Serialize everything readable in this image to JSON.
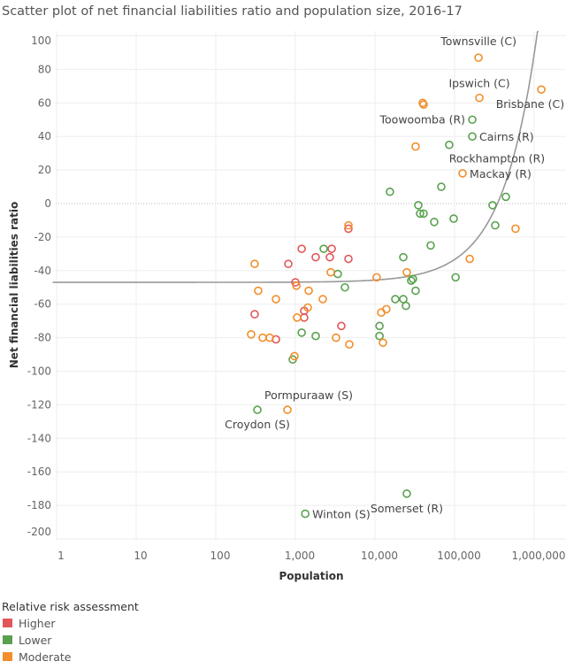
{
  "chart_data": {
    "type": "scatter",
    "title": "Scatter plot of net financial liabilities ratio and population size, 2016-17",
    "xlabel": "Population",
    "ylabel": "Net financial liabilities ratio",
    "xscale": "log",
    "xlim": [
      0.85,
      2000000
    ],
    "ylim": [
      -201,
      103
    ],
    "xticks": [
      1,
      10,
      100,
      1000,
      10000,
      100000,
      1000000
    ],
    "xtick_labels": [
      "1",
      "10",
      "100",
      "1,000",
      "10,000",
      "100,000",
      "1,000,000"
    ],
    "yticks": [
      100,
      80,
      60,
      40,
      20,
      0,
      -20,
      -40,
      -60,
      -80,
      -100,
      -120,
      -140,
      -160,
      -180,
      -200
    ],
    "ytick_labels": [
      "100",
      "80",
      "60",
      "40",
      "20",
      "0",
      "-20",
      "-40",
      "-60",
      "-80",
      "-100",
      "-120",
      "-140",
      "-160",
      "-180",
      "-200"
    ],
    "grid": true,
    "trend_line": {
      "type": "linear",
      "intercept": -47,
      "slope": 0.000136,
      "color": "#999999"
    },
    "legend": {
      "title": "Relative risk assessment",
      "placement": "bottom-left",
      "entries": [
        {
          "name": "Higher",
          "color": "#e15759"
        },
        {
          "name": "Lower",
          "color": "#59a14f"
        },
        {
          "name": "Moderate",
          "color": "#f28e2b"
        }
      ]
    },
    "series": [
      {
        "name": "Higher",
        "color": "#e15759",
        "points": [
          {
            "x": 1200,
            "y": -27
          },
          {
            "x": 1800,
            "y": -32
          },
          {
            "x": 2860,
            "y": -27
          },
          {
            "x": 2710,
            "y": -32
          },
          {
            "x": 4640,
            "y": -15
          },
          {
            "x": 4640,
            "y": -33
          },
          {
            "x": 815,
            "y": -36
          },
          {
            "x": 1000,
            "y": -47
          },
          {
            "x": 308,
            "y": -66
          },
          {
            "x": 1290,
            "y": -64
          },
          {
            "x": 1290,
            "y": -68
          },
          {
            "x": 3780,
            "y": -73
          },
          {
            "x": 570,
            "y": -81
          }
        ]
      },
      {
        "name": "Lower",
        "color": "#59a14f",
        "points": [
          {
            "x": 167000,
            "y": 50,
            "label": "Toowoomba (R)"
          },
          {
            "x": 167000,
            "y": 40,
            "label": "Cairns (R)"
          },
          {
            "x": 85700,
            "y": 35,
            "label": "Rockhampton (R)"
          },
          {
            "x": 15400,
            "y": 7
          },
          {
            "x": 68100,
            "y": 10
          },
          {
            "x": 35000,
            "y": -1
          },
          {
            "x": 36900,
            "y": -6
          },
          {
            "x": 40800,
            "y": -6
          },
          {
            "x": 55500,
            "y": -11
          },
          {
            "x": 97500,
            "y": -9
          },
          {
            "x": 300000,
            "y": -1
          },
          {
            "x": 441000,
            "y": 4
          },
          {
            "x": 324000,
            "y": -13
          },
          {
            "x": 50100,
            "y": -25
          },
          {
            "x": 22700,
            "y": -32
          },
          {
            "x": 28500,
            "y": -46
          },
          {
            "x": 30000,
            "y": -45
          },
          {
            "x": 32400,
            "y": -52
          },
          {
            "x": 18000,
            "y": -57
          },
          {
            "x": 22700,
            "y": -57
          },
          {
            "x": 24500,
            "y": -61
          },
          {
            "x": 103000,
            "y": -44
          },
          {
            "x": 11400,
            "y": -73
          },
          {
            "x": 11400,
            "y": -79
          },
          {
            "x": 2270,
            "y": -27
          },
          {
            "x": 3410,
            "y": -42
          },
          {
            "x": 4190,
            "y": -50
          },
          {
            "x": 1200,
            "y": -77
          },
          {
            "x": 1800,
            "y": -79
          },
          {
            "x": 926,
            "y": -93
          },
          {
            "x": 333,
            "y": -123,
            "label": "Croydon (S)"
          },
          {
            "x": 25100,
            "y": -173,
            "label": "Somerset (R)"
          },
          {
            "x": 1330,
            "y": -185,
            "label": "Winton (S)"
          }
        ]
      },
      {
        "name": "Moderate",
        "color": "#f28e2b",
        "points": [
          {
            "x": 200000,
            "y": 87,
            "label": "Townsville (C)"
          },
          {
            "x": 205000,
            "y": 63,
            "label": "Ipswich (C)"
          },
          {
            "x": 1230000,
            "y": 68,
            "label": "Brisbane (C)"
          },
          {
            "x": 39800,
            "y": 60
          },
          {
            "x": 40800,
            "y": 59
          },
          {
            "x": 32400,
            "y": 34
          },
          {
            "x": 126000,
            "y": 18,
            "label": "Mackay (R)"
          },
          {
            "x": 584000,
            "y": -15
          },
          {
            "x": 155000,
            "y": -33
          },
          {
            "x": 4640,
            "y": -13
          },
          {
            "x": 308,
            "y": -36
          },
          {
            "x": 2780,
            "y": -41
          },
          {
            "x": 10500,
            "y": -44
          },
          {
            "x": 25100,
            "y": -41
          },
          {
            "x": 341,
            "y": -52
          },
          {
            "x": 570,
            "y": -57
          },
          {
            "x": 1470,
            "y": -52
          },
          {
            "x": 2210,
            "y": -57
          },
          {
            "x": 1430,
            "y": -62
          },
          {
            "x": 1030,
            "y": -49
          },
          {
            "x": 1050,
            "y": -68
          },
          {
            "x": 12000,
            "y": -65
          },
          {
            "x": 13900,
            "y": -63
          },
          {
            "x": 278,
            "y": -78
          },
          {
            "x": 388,
            "y": -80
          },
          {
            "x": 476,
            "y": -80
          },
          {
            "x": 3240,
            "y": -80
          },
          {
            "x": 4760,
            "y": -84
          },
          {
            "x": 12600,
            "y": -83
          },
          {
            "x": 975,
            "y": -91
          },
          {
            "x": 795,
            "y": -123,
            "label": "Pormpuraaw (S)"
          }
        ]
      }
    ]
  }
}
